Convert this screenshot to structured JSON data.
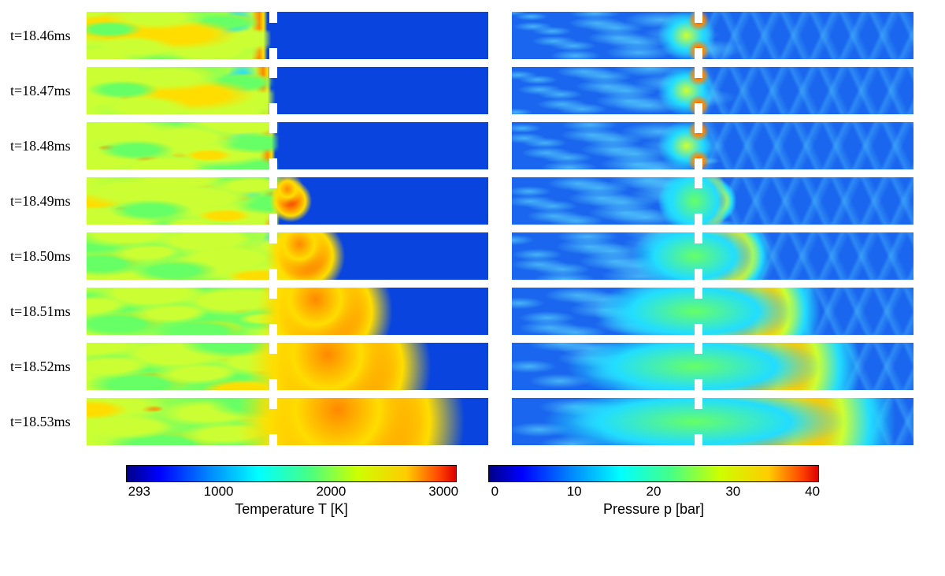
{
  "timesteps": [
    {
      "label": "t=18.46ms",
      "flame_width_pct": 44,
      "pressure_front_pct": 48
    },
    {
      "label": "t=18.47ms",
      "flame_width_pct": 45,
      "pressure_front_pct": 50
    },
    {
      "label": "t=18.48ms",
      "flame_width_pct": 46,
      "pressure_front_pct": 51,
      "hotspot": true
    },
    {
      "label": "t=18.49ms",
      "flame_width_pct": 47,
      "pressure_front_pct": 53,
      "hotspot": true,
      "puff": 8
    },
    {
      "label": "t=18.50ms",
      "flame_width_pct": 53,
      "pressure_front_pct": 57,
      "hotspot": true,
      "puff": 14
    },
    {
      "label": "t=18.51ms",
      "flame_width_pct": 59,
      "pressure_front_pct": 63,
      "hotspot": true,
      "puff": 22
    },
    {
      "label": "t=18.52ms",
      "flame_width_pct": 65,
      "pressure_front_pct": 70,
      "hotspot": true,
      "puff": 28
    },
    {
      "label": "t=18.53ms",
      "flame_width_pct": 70,
      "pressure_front_pct": 75,
      "hotspot": true,
      "puff": 33
    }
  ],
  "temperature_bar": {
    "label": "Temperature T   [K]",
    "ticks": [
      {
        "value": "293",
        "pos_pct": 4
      },
      {
        "value": "1000",
        "pos_pct": 28
      },
      {
        "value": "2000",
        "pos_pct": 62
      },
      {
        "value": "3000",
        "pos_pct": 96
      }
    ],
    "gradient": "linear-gradient(to right, #000088 0%, #0000ff 10%, #0088ff 25%, #00ffff 40%, #44ff88 55%, #ccff00 70%, #ffcc00 85%, #ff4400 95%, #dd0000 100%)"
  },
  "pressure_bar": {
    "label": "Pressure p   [bar]",
    "ticks": [
      {
        "value": "0",
        "pos_pct": 2
      },
      {
        "value": "10",
        "pos_pct": 26
      },
      {
        "value": "20",
        "pos_pct": 50
      },
      {
        "value": "30",
        "pos_pct": 74
      },
      {
        "value": "40",
        "pos_pct": 98
      }
    ],
    "gradient": "linear-gradient(to right, #000088 0%, #0000ff 10%, #0088ff 25%, #00ffff 40%, #44ff88 55%, #ccff00 70%, #ffcc00 85%, #ff4400 95%, #dd0000 100%)"
  },
  "colors": {
    "cold_blue": "#0844dd",
    "mid_blue": "#1566ee",
    "cyan": "#22ddff",
    "green": "#66ff66",
    "yellow_green": "#ccff33",
    "yellow": "#ffdd00",
    "orange": "#ff8800",
    "red": "#ee2200",
    "dark_red": "#cc0000"
  }
}
